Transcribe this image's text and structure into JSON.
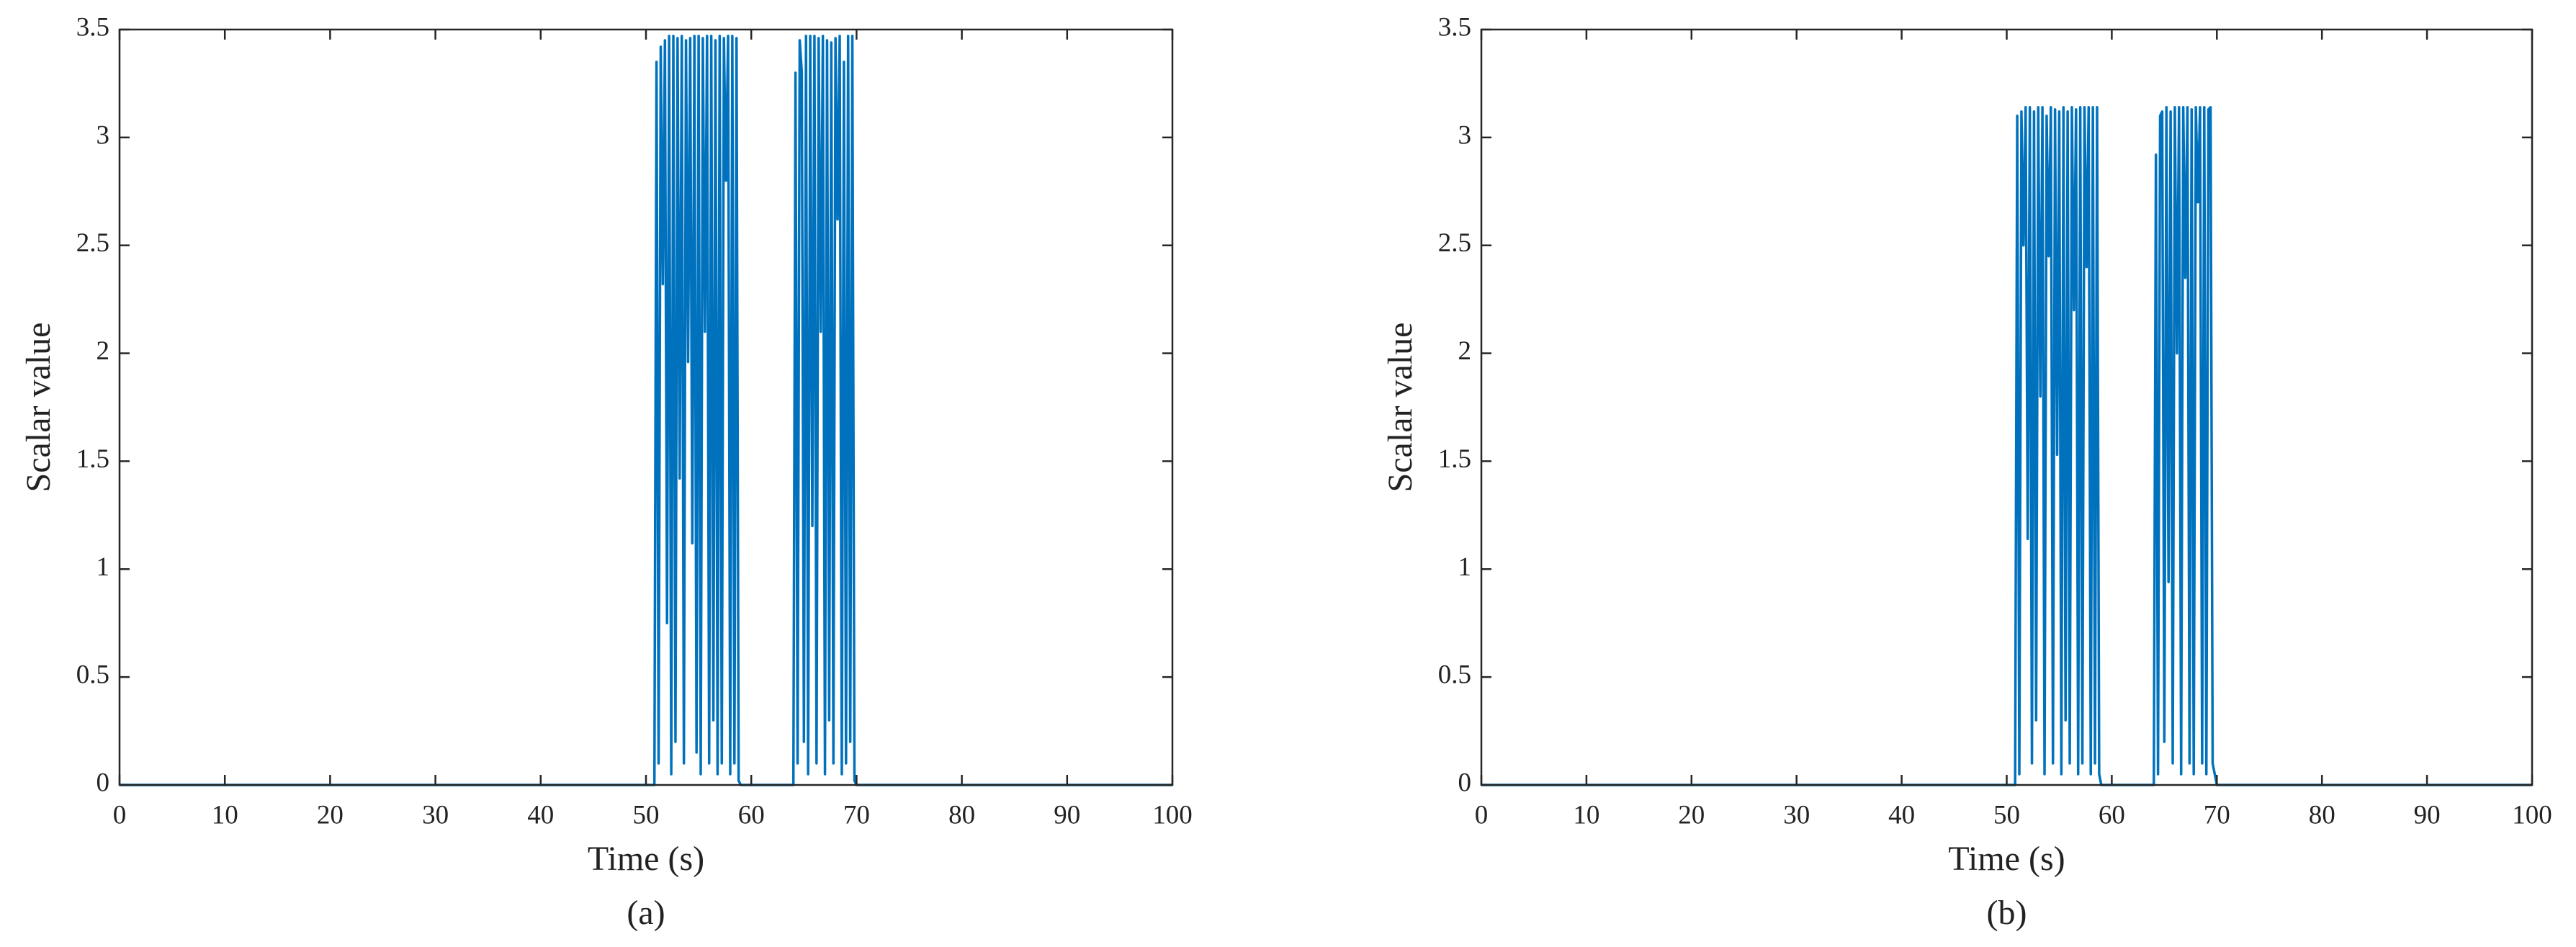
{
  "chart_data": [
    {
      "type": "line",
      "x_label": "Time (s)",
      "y_label": "Scalar value",
      "caption": "(a)",
      "color": "#0072bd",
      "xlim": [
        0,
        100
      ],
      "xticks": [
        0,
        10,
        20,
        30,
        40,
        50,
        60,
        70,
        80,
        90,
        100
      ],
      "ylim": [
        0,
        3.5
      ],
      "yticks": [
        0,
        0.5,
        1,
        1.5,
        2,
        2.5,
        3,
        3.5
      ],
      "x": [
        0,
        50.8,
        51.0,
        51.2,
        51.4,
        51.6,
        51.8,
        52.0,
        52.2,
        52.4,
        52.6,
        52.8,
        53.0,
        53.2,
        53.4,
        53.6,
        53.8,
        54.0,
        54.2,
        54.4,
        54.6,
        54.8,
        55.0,
        55.2,
        55.4,
        55.6,
        55.8,
        56.0,
        56.2,
        56.4,
        56.6,
        56.8,
        57.0,
        57.2,
        57.4,
        57.6,
        57.8,
        58.0,
        58.2,
        58.4,
        58.6,
        58.8,
        59.0,
        64.0,
        64.2,
        64.4,
        64.6,
        64.8,
        65.0,
        65.2,
        65.4,
        65.6,
        65.8,
        66.0,
        66.2,
        66.4,
        66.6,
        66.8,
        67.0,
        67.2,
        67.4,
        67.6,
        67.8,
        68.0,
        68.2,
        68.4,
        68.6,
        68.8,
        69.0,
        69.2,
        69.4,
        69.6,
        69.8,
        70.0,
        100
      ],
      "values": [
        0,
        0,
        3.35,
        0.1,
        3.42,
        2.32,
        3.45,
        0.75,
        3.47,
        0.05,
        3.47,
        0.2,
        3.46,
        1.42,
        3.47,
        0.1,
        3.45,
        1.96,
        3.46,
        1.12,
        3.47,
        0.15,
        3.47,
        0.05,
        3.46,
        2.1,
        3.47,
        0.1,
        3.47,
        0.3,
        3.45,
        0.05,
        3.47,
        0.1,
        3.46,
        2.8,
        3.47,
        0.05,
        3.47,
        0.1,
        3.46,
        0.02,
        0,
        0,
        3.3,
        0.1,
        3.45,
        3.3,
        0.2,
        3.47,
        0.05,
        3.47,
        1.2,
        3.47,
        0.1,
        3.46,
        2.1,
        3.47,
        0.05,
        3.45,
        0.3,
        3.44,
        0.1,
        3.46,
        2.62,
        3.47,
        0.05,
        3.35,
        0.1,
        3.47,
        0.2,
        3.47,
        0.02,
        0,
        0
      ]
    },
    {
      "type": "line",
      "x_label": "Time (s)",
      "y_label": "Scalar value",
      "caption": "(b)",
      "color": "#0072bd",
      "xlim": [
        0,
        100
      ],
      "xticks": [
        0,
        10,
        20,
        30,
        40,
        50,
        60,
        70,
        80,
        90,
        100
      ],
      "ylim": [
        0,
        3.5
      ],
      "yticks": [
        0,
        0.5,
        1,
        1.5,
        2,
        2.5,
        3,
        3.5
      ],
      "x": [
        0,
        50.8,
        51.0,
        51.2,
        51.4,
        51.6,
        51.8,
        52.0,
        52.2,
        52.4,
        52.6,
        52.8,
        53.0,
        53.2,
        53.4,
        53.6,
        53.8,
        54.0,
        54.2,
        54.4,
        54.6,
        54.8,
        55.0,
        55.2,
        55.4,
        55.6,
        55.8,
        56.0,
        56.2,
        56.4,
        56.6,
        56.8,
        57.0,
        57.2,
        57.4,
        57.6,
        57.8,
        58.0,
        58.2,
        58.4,
        58.6,
        58.8,
        59.0,
        64.0,
        64.2,
        64.4,
        64.6,
        64.8,
        65.0,
        65.2,
        65.4,
        65.6,
        65.8,
        66.0,
        66.2,
        66.4,
        66.6,
        66.8,
        67.0,
        67.2,
        67.4,
        67.6,
        67.8,
        68.0,
        68.2,
        68.4,
        68.6,
        68.8,
        69.0,
        69.2,
        69.4,
        69.6,
        69.8,
        70.0,
        100
      ],
      "values": [
        0,
        0,
        3.1,
        0.05,
        3.12,
        2.5,
        3.14,
        1.14,
        3.14,
        0.1,
        3.12,
        0.3,
        3.14,
        1.8,
        3.14,
        0.05,
        3.1,
        2.45,
        3.14,
        0.1,
        3.13,
        1.53,
        3.12,
        0.05,
        3.14,
        0.3,
        3.12,
        0.1,
        3.14,
        2.2,
        3.13,
        0.05,
        3.14,
        0.1,
        3.14,
        2.4,
        3.14,
        0.05,
        3.14,
        0.1,
        3.14,
        0.05,
        0,
        0,
        2.92,
        0.05,
        3.1,
        3.12,
        0.2,
        3.14,
        0.94,
        3.12,
        0.1,
        3.14,
        2.0,
        3.14,
        0.05,
        3.14,
        2.35,
        3.14,
        0.1,
        3.13,
        0.05,
        3.14,
        2.7,
        3.14,
        0.1,
        3.14,
        0.05,
        3.13,
        3.14,
        0.1,
        0.05,
        0,
        0
      ]
    }
  ]
}
